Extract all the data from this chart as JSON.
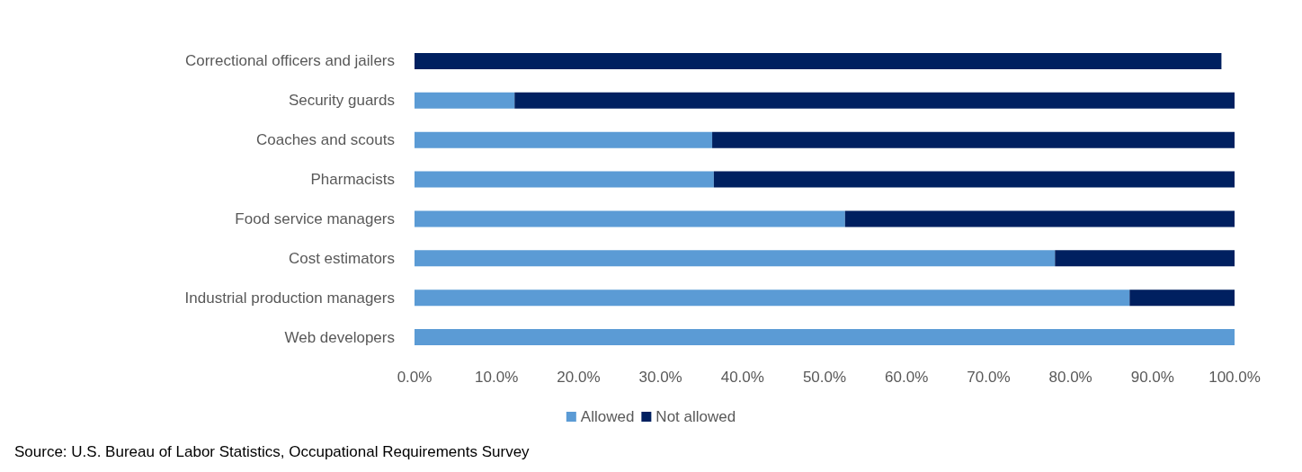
{
  "chart_data": {
    "type": "bar",
    "orientation": "horizontal",
    "stacked": true,
    "categories": [
      "Correctional officers and jailers",
      "Security guards",
      "Coaches and scouts",
      "Pharmacists",
      "Food service managers",
      "Cost estimators",
      "Industrial production managers",
      "Web developers"
    ],
    "series": [
      {
        "name": "Allowed",
        "color": "#5b9bd5",
        "values": [
          0,
          12.2,
          36.3,
          36.5,
          52.5,
          78.1,
          87.2,
          100
        ]
      },
      {
        "name": "Not allowed",
        "color": "#002060",
        "values": [
          98.4,
          87.8,
          63.7,
          63.5,
          47.5,
          21.9,
          12.8,
          0
        ]
      }
    ],
    "xlim": [
      0,
      100
    ],
    "xticks": [
      {
        "value": 0,
        "label": "0.0%"
      },
      {
        "value": 10,
        "label": "10.0%"
      },
      {
        "value": 20,
        "label": "20.0%"
      },
      {
        "value": 30,
        "label": "30.0%"
      },
      {
        "value": 40,
        "label": "40.0%"
      },
      {
        "value": 50,
        "label": "50.0%"
      },
      {
        "value": 60,
        "label": "60.0%"
      },
      {
        "value": 70,
        "label": "70.0%"
      },
      {
        "value": 80,
        "label": "80.0%"
      },
      {
        "value": 90,
        "label": "90.0%"
      },
      {
        "value": 100,
        "label": "100.0%"
      }
    ],
    "grid": false,
    "legend": "bottom",
    "annotations": [
      "Source: U.S. Bureau of Labor Statistics, Occupational Requirements Survey"
    ]
  }
}
